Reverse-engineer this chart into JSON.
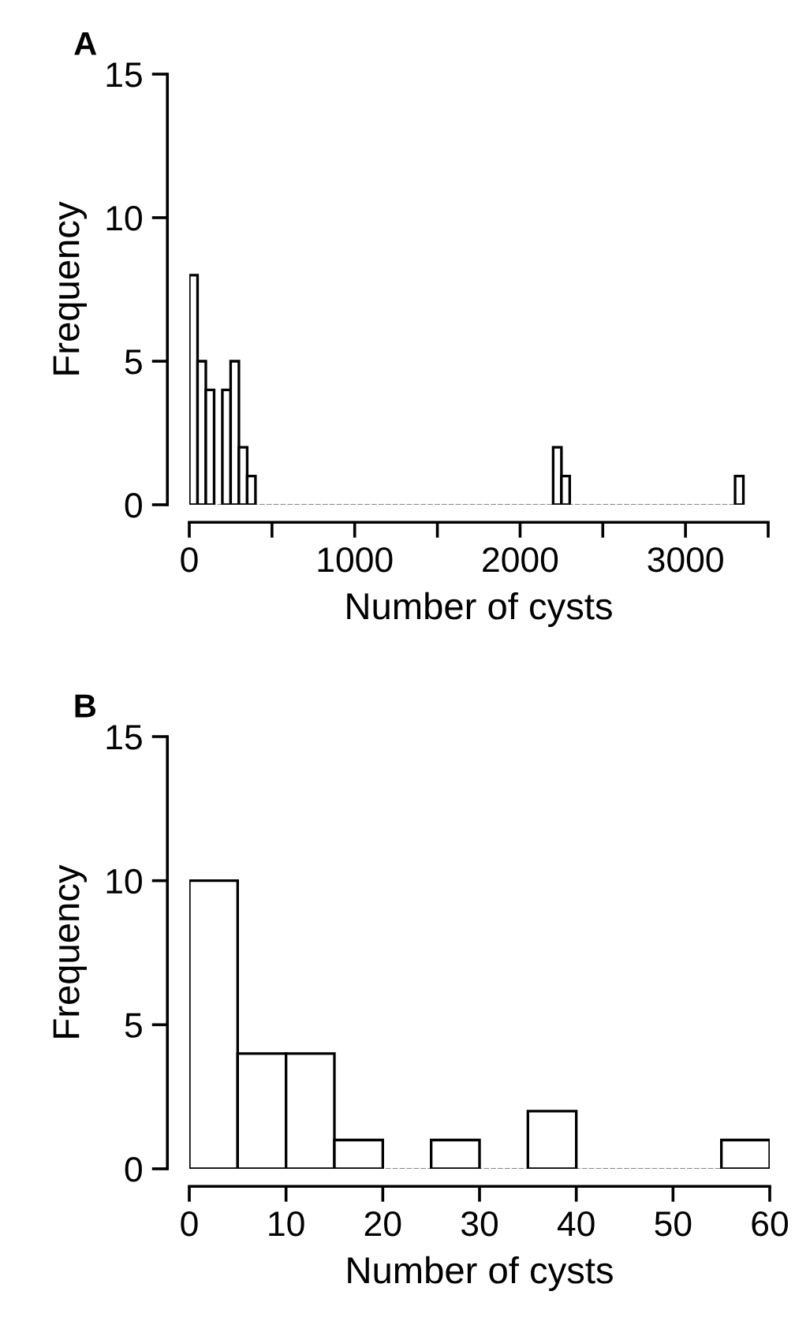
{
  "chart_data": [
    {
      "type": "histogram",
      "title": "A",
      "xlabel": "Number of cysts",
      "ylabel": "Frequency",
      "bins": [
        0,
        50,
        100,
        150,
        200,
        250,
        300,
        350,
        400,
        450,
        500,
        550,
        600,
        650,
        700,
        750,
        800,
        850,
        900,
        950,
        1000,
        1050,
        1100,
        1150,
        1200,
        1250,
        1300,
        1350,
        1400,
        1450,
        1500,
        1550,
        1600,
        1650,
        1700,
        1750,
        1800,
        1850,
        1900,
        1950,
        2000,
        2050,
        2100,
        2150,
        2200,
        2250,
        2300,
        2350,
        2400,
        2450,
        2500,
        2550,
        2600,
        2650,
        2700,
        2750,
        2800,
        2850,
        2900,
        2950,
        3000,
        3050,
        3100,
        3150,
        3200,
        3250,
        3300,
        3350
      ],
      "values": [
        8,
        5,
        4,
        0,
        4,
        5,
        2,
        1,
        0,
        0,
        0,
        0,
        0,
        0,
        0,
        0,
        0,
        0,
        0,
        0,
        0,
        0,
        0,
        0,
        0,
        0,
        0,
        0,
        0,
        0,
        0,
        0,
        0,
        0,
        0,
        0,
        0,
        0,
        0,
        0,
        0,
        0,
        0,
        0,
        2,
        1,
        0,
        0,
        0,
        0,
        0,
        0,
        0,
        0,
        0,
        0,
        0,
        0,
        0,
        0,
        0,
        0,
        0,
        0,
        0,
        0,
        1
      ],
      "color": "#ffffff",
      "xlim": [
        0,
        3500
      ],
      "xticks": [
        0,
        {
          "value": 500,
          "label": null
        },
        1000,
        {
          "value": 1500,
          "label": null
        },
        2000,
        {
          "value": 2500,
          "label": null
        },
        3000,
        {
          "value": 3500,
          "label": null
        }
      ],
      "ylim": [
        0,
        15
      ],
      "yticks": [
        0,
        5,
        10,
        15
      ],
      "grid": false
    },
    {
      "type": "histogram",
      "title": "B",
      "xlabel": "Number of cysts",
      "ylabel": "Frequency",
      "bins": [
        0,
        5,
        10,
        15,
        20,
        25,
        30,
        35,
        40,
        45,
        50,
        55,
        60
      ],
      "values": [
        10,
        4,
        4,
        1,
        0,
        1,
        0,
        2,
        0,
        0,
        0,
        1
      ],
      "color": "#ffffff",
      "xlim": [
        0,
        60
      ],
      "xticks": [
        0,
        10,
        20,
        30,
        40,
        50,
        60
      ],
      "ylim": [
        0,
        15
      ],
      "yticks": [
        0,
        5,
        10,
        15
      ],
      "grid": false
    }
  ]
}
